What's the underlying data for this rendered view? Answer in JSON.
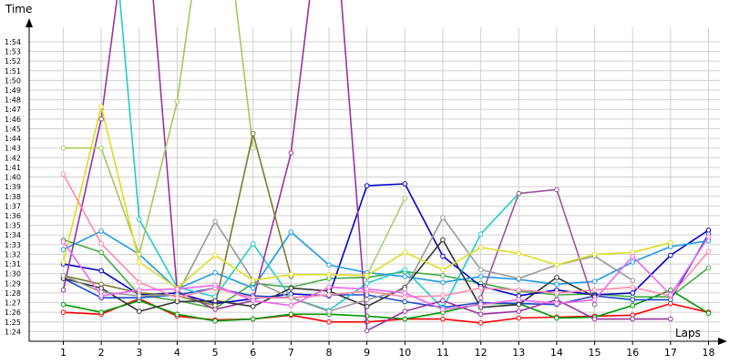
{
  "chart_data": {
    "type": "line",
    "title": "",
    "xlabel": "Laps",
    "ylabel": "Time",
    "x": [
      1,
      2,
      3,
      4,
      5,
      6,
      7,
      8,
      9,
      10,
      11,
      12,
      13,
      14,
      15,
      16,
      17,
      18
    ],
    "y_ticks_seconds": [
      84,
      85,
      86,
      87,
      88,
      89,
      90,
      91,
      92,
      93,
      94,
      95,
      96,
      97,
      98,
      99,
      100,
      101,
      102,
      103,
      104,
      105,
      106,
      107,
      108,
      109,
      110,
      111,
      112,
      113,
      114
    ],
    "y_tick_labels": [
      "1:24",
      "1:25",
      "1:26",
      "1:27",
      "1:28",
      "1:29",
      "1:30",
      "1:31",
      "1:32",
      "1:33",
      "1:34",
      "1:35",
      "1:36",
      "1:37",
      "1:38",
      "1:39",
      "1:40",
      "1:41",
      "1:42",
      "1:43",
      "1:44",
      "1:45",
      "1:46",
      "1:47",
      "1:48",
      "1:49",
      "1:50",
      "1:51",
      "1:52",
      "1:53",
      "1:54"
    ],
    "ylim_seconds": [
      83,
      115.5
    ],
    "xlim": [
      0.1,
      18.3
    ],
    "grid": true,
    "legend": "none",
    "series": [
      {
        "color": "#ff0000",
        "values": [
          86.0,
          85.8,
          87.4,
          85.6,
          85.2,
          85.3,
          85.7,
          85.0,
          85.0,
          85.3,
          85.3,
          84.9,
          85.4,
          85.5,
          85.6,
          85.7,
          86.9,
          86.0
        ]
      },
      {
        "color": "#009900",
        "values": [
          86.8,
          86.0,
          87.2,
          85.8,
          85.1,
          85.3,
          85.8,
          85.8,
          85.6,
          85.3,
          86.0,
          86.9,
          86.9,
          85.4,
          85.5,
          86.7,
          88.3,
          85.9
        ]
      },
      {
        "color": "#44aa44",
        "values": [
          93.5,
          92.2,
          87.8,
          87.2,
          86.4,
          89.0,
          88.6,
          89.5,
          89.6,
          90.2,
          89.8,
          89.0,
          88.2,
          87.8,
          87.9,
          87.6,
          87.6,
          90.6
        ]
      },
      {
        "color": "#0000cc",
        "values": [
          91.0,
          90.3,
          87.8,
          88.0,
          86.9,
          87.4,
          87.9,
          87.7,
          99.1,
          99.3,
          91.8,
          88.7,
          87.7,
          88.3,
          87.8,
          88.0,
          91.9,
          94.5
        ]
      },
      {
        "color": "#1a4acd",
        "values": [
          89.5,
          87.5,
          87.5,
          87.8,
          88.5,
          87.7,
          87.5,
          87.8,
          87.8,
          87.1,
          86.5,
          87.0,
          86.9,
          86.8,
          87.7,
          87.3,
          87.3,
          94.1
        ]
      },
      {
        "color": "#1e9ae6",
        "values": [
          92.5,
          94.4,
          92.0,
          88.4,
          90.1,
          88.5,
          94.3,
          90.9,
          90.1,
          89.7,
          89.1,
          89.7,
          89.4,
          88.9,
          89.2,
          91.2,
          92.8,
          93.4
        ]
      },
      {
        "color": "#22cccc",
        "values": [
          140.0,
          140.3,
          95.6,
          88.6,
          87.6,
          93.1,
          87.5,
          86.2,
          89.0,
          90.4,
          86.4,
          94.1,
          98.3,
          null,
          null,
          null,
          null,
          null
        ]
      },
      {
        "color": "#9933a0",
        "values": [
          88.3,
          106.0,
          136.0,
          88.2,
          86.3,
          87.2,
          102.5,
          135.0,
          84.1,
          86.1,
          87.2,
          85.8,
          86.1,
          87.3,
          85.3,
          85.3,
          85.3,
          null
        ]
      },
      {
        "color": "#995599",
        "values": [
          null,
          null,
          null,
          null,
          null,
          null,
          null,
          null,
          null,
          null,
          null,
          87.5,
          98.3,
          98.7,
          86.8,
          null,
          null,
          null
        ]
      },
      {
        "color": "#a8c85a",
        "values": [
          103.0,
          103.0,
          92.0,
          107.8,
          136.0,
          103.0,
          null,
          null,
          null,
          null,
          null,
          null,
          null,
          null,
          null,
          null,
          null,
          null
        ]
      },
      {
        "color": "#aacc77",
        "values": [
          null,
          null,
          null,
          null,
          null,
          null,
          null,
          null,
          89.8,
          97.8,
          null,
          null,
          null,
          null,
          null,
          null,
          null,
          null
        ]
      },
      {
        "color": "#7a7a30",
        "values": [
          89.8,
          88.9,
          88.0,
          87.7,
          86.7,
          104.5,
          89.7,
          null,
          null,
          null,
          null,
          null,
          null,
          null,
          null,
          null,
          null,
          null
        ]
      },
      {
        "color": "#333333",
        "values": [
          89.5,
          88.5,
          86.1,
          87.1,
          87.2,
          86.6,
          88.5,
          88.2,
          86.6,
          88.6,
          93.5,
          86.5,
          86.8,
          89.6,
          87.6,
          null,
          null,
          null
        ]
      },
      {
        "color": "#999999",
        "values": [
          89.8,
          88.1,
          87.7,
          87.8,
          95.4,
          89.3,
          87.5,
          86.1,
          87.3,
          88.4,
          95.8,
          90.4,
          89.5,
          90.9,
          91.8,
          89.3,
          null,
          null
        ]
      },
      {
        "color": "#dddd22",
        "values": [
          91.2,
          107.3,
          91.2,
          88.5,
          91.9,
          89.3,
          89.9,
          89.9,
          89.8,
          92.2,
          90.4,
          92.7,
          92.1,
          90.9,
          92.0,
          92.2,
          93.2,
          null
        ]
      },
      {
        "color": "#ff88aa",
        "values": [
          100.3,
          93.1,
          89.1,
          87.5,
          88.5,
          87.5,
          87.5,
          87.8,
          88.2,
          87.6,
          87.7,
          88.5,
          88.3,
          88.0,
          88.3,
          88.6,
          87.7,
          92.3
        ]
      },
      {
        "color": "#ee66ee",
        "values": [
          93.3,
          87.7,
          88.3,
          88.4,
          88.8,
          87.2,
          86.7,
          88.6,
          88.4,
          88.0,
          86.3,
          86.8,
          87.3,
          86.9,
          87.3,
          91.8,
          87.8,
          93.8
        ]
      }
    ]
  }
}
